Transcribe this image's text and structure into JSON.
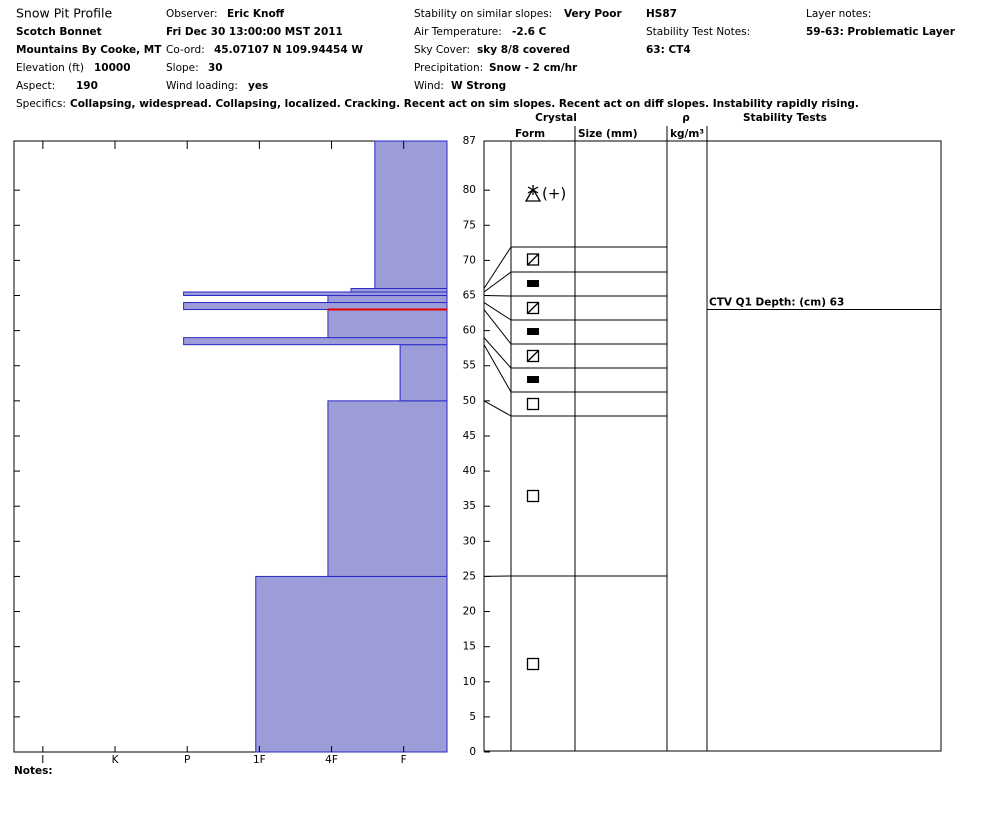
{
  "header": {
    "title": "Snow Pit Profile",
    "fields": [
      {
        "label": "Observer:",
        "value": "Eric Knoff"
      },
      {
        "value": "Fri Dec 30 13:00:00 MST 2011"
      },
      {
        "label": "Co-ord:",
        "value": "45.07107 N 109.94454 W"
      },
      {
        "label": "Slope:",
        "value": "30"
      },
      {
        "label": "Wind loading:",
        "value": "yes"
      },
      {
        "value": "Scotch Bonnet"
      },
      {
        "value": "Mountains By Cooke, MT"
      },
      {
        "label": "Elevation (ft)",
        "value": "10000"
      },
      {
        "label": "Aspect:",
        "value": "190"
      },
      {
        "label": "Stability on similar slopes:",
        "value": "Very Poor"
      },
      {
        "label": "Air Temperature:",
        "value": "-2.6 C"
      },
      {
        "label": "Sky Cover:",
        "value": "sky 8/8 covered"
      },
      {
        "label": "Precipitation:",
        "value": "Snow - 2 cm/hr"
      },
      {
        "label": "Wind:",
        "value": "W Strong"
      },
      {
        "value": "HS87"
      },
      {
        "label": "Stability Test Notes:"
      },
      {
        "value": "63: CT4"
      },
      {
        "label": "Layer notes:"
      },
      {
        "value": "59-63: Problematic Layer"
      },
      {
        "label": "Specifics:",
        "value": "Collapsing, widespread. Collapsing, localized. Cracking. Recent act on sim slopes. Recent act on diff slopes. Instability rapidly rising."
      }
    ],
    "notes_label": "Notes:"
  },
  "chart_data": {
    "type": "snow-profile",
    "columns": {
      "crystal": "Crystal",
      "form": "Form",
      "size": "Size (mm)",
      "rho": "ρ",
      "density": "kg/m³",
      "stability": "Stability Tests"
    },
    "ylim": [
      0,
      87
    ],
    "yticks": [
      0,
      5,
      10,
      15,
      20,
      25,
      30,
      35,
      40,
      45,
      50,
      55,
      60,
      65,
      70,
      75,
      80,
      87
    ],
    "xlim": [
      0.4,
      6.4
    ],
    "xticks": [
      {
        "value": 1,
        "label": "F"
      },
      {
        "value": 2,
        "label": "4F"
      },
      {
        "value": 3,
        "label": "1F"
      },
      {
        "value": 4,
        "label": "P"
      },
      {
        "value": 5,
        "label": "K"
      },
      {
        "value": 6,
        "label": "I"
      }
    ],
    "color": "#9c9cd8",
    "edge_color": "#2a2ac8",
    "layers": [
      {
        "bottom": 0,
        "top": 25,
        "hardness": 3.05
      },
      {
        "bottom": 25,
        "top": 50,
        "hardness": 2.05
      },
      {
        "bottom": 50,
        "top": 58,
        "hardness": 1.05
      },
      {
        "bottom": 58,
        "top": 59,
        "hardness": 4.05
      },
      {
        "bottom": 59,
        "top": 63,
        "hardness": 2.05
      },
      {
        "bottom": 63,
        "top": 64,
        "hardness": 4.05
      },
      {
        "bottom": 64,
        "top": 65,
        "hardness": 2.05
      },
      {
        "bottom": 65,
        "top": 65.5,
        "hardness": 4.05
      },
      {
        "bottom": 65.5,
        "top": 66,
        "hardness": 1.73
      },
      {
        "bottom": 66,
        "top": 87,
        "hardness": 1.4,
        "form_suffix": "(+)"
      }
    ],
    "stability_tests": [
      {
        "label": "CTV Q1 Depth: (cm) 63",
        "depth": 63,
        "color": "#e00000"
      }
    ]
  }
}
